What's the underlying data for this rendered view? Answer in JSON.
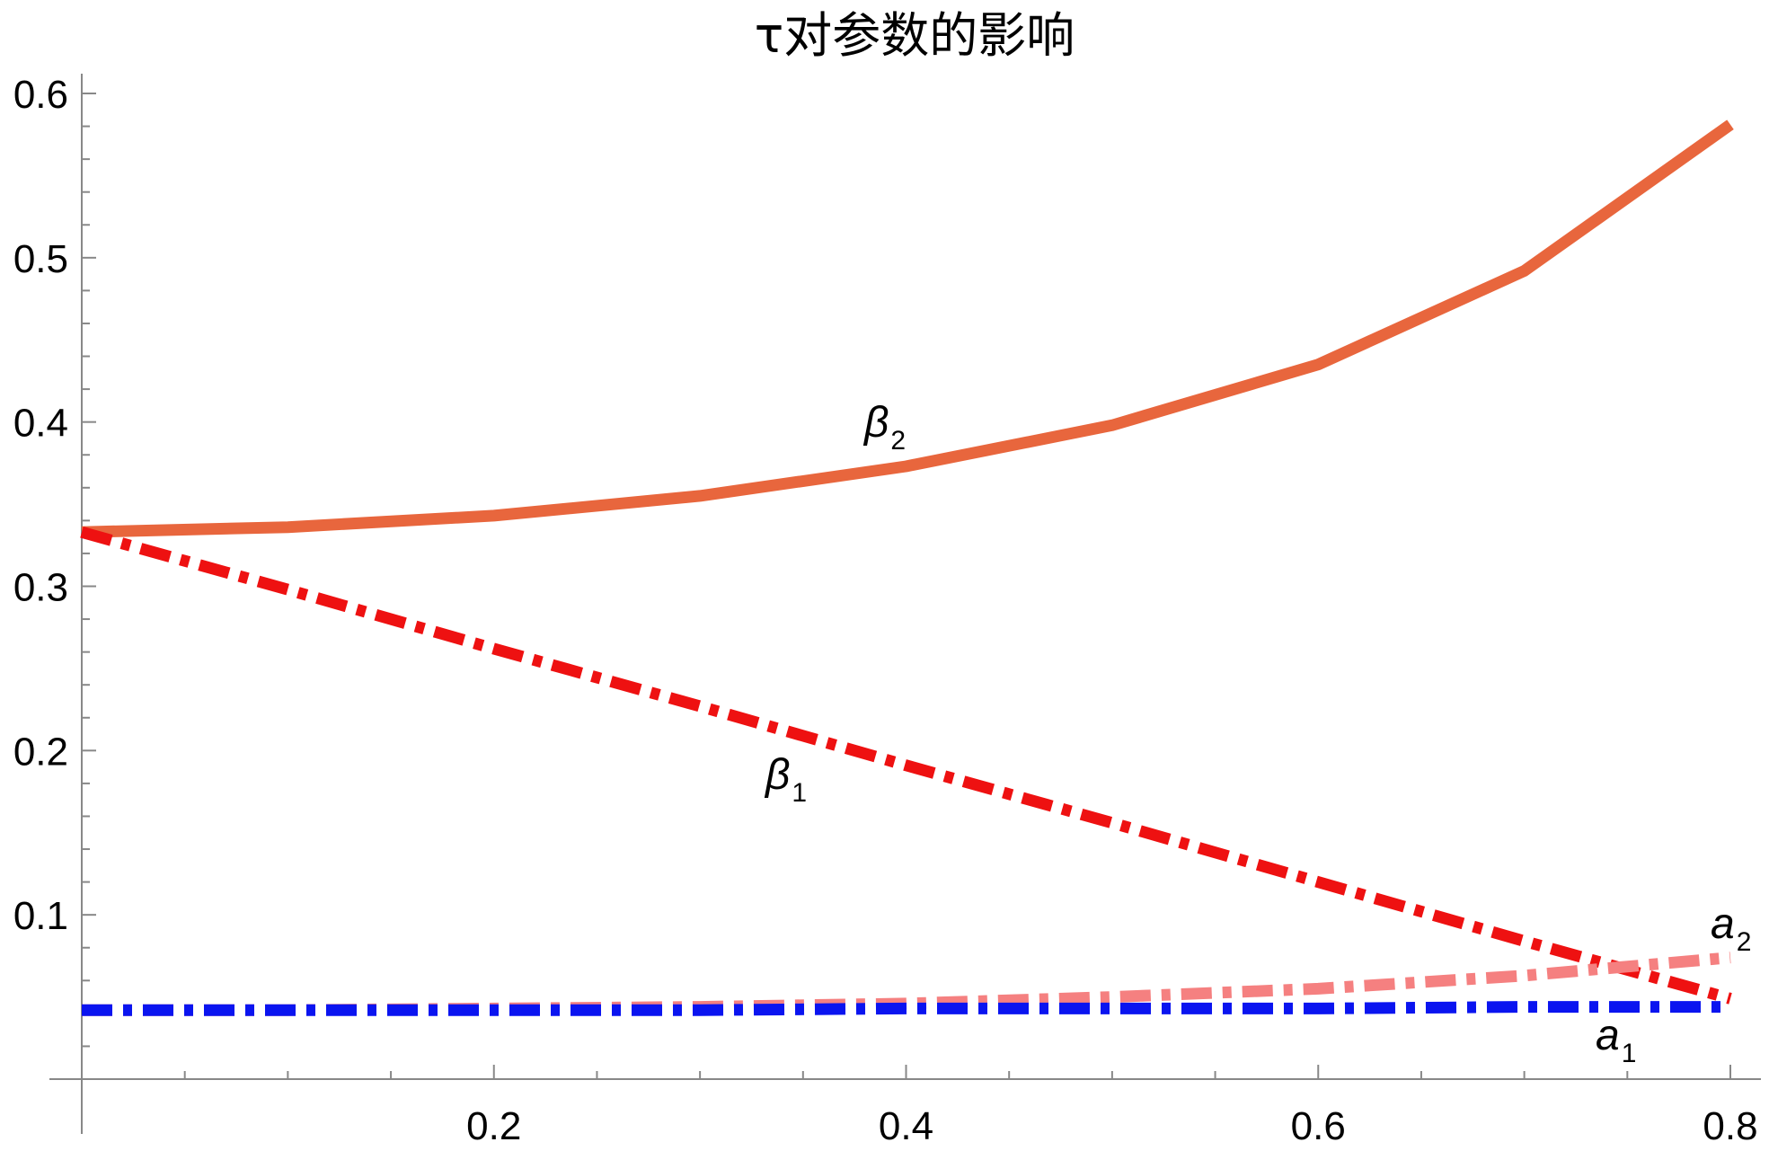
{
  "chart_data": {
    "type": "line",
    "title": "τ对参数的影响",
    "xlabel": "",
    "ylabel": "",
    "xlim": [
      0.0,
      0.81
    ],
    "ylim": [
      0.0,
      0.62
    ],
    "x_ticks": [
      0.2,
      0.4,
      0.6,
      0.8
    ],
    "x_tick_labels": [
      "0.2",
      "0.4",
      "0.6",
      "0.8"
    ],
    "y_ticks": [
      0.1,
      0.2,
      0.3,
      0.4,
      0.5,
      0.6
    ],
    "y_tick_labels": [
      "0.1",
      "0.2",
      "0.3",
      "0.4",
      "0.5",
      "0.6"
    ],
    "grid": false,
    "legend": "none",
    "x": [
      0.0,
      0.1,
      0.2,
      0.3,
      0.4,
      0.5,
      0.6,
      0.7,
      0.8
    ],
    "series": [
      {
        "name": "β2",
        "label_main": "β",
        "label_sub": "2",
        "style": "solid",
        "color": "#E8663D",
        "values": [
          0.333,
          0.336,
          0.343,
          0.355,
          0.373,
          0.398,
          0.435,
          0.492,
          0.581
        ]
      },
      {
        "name": "β1",
        "label_main": "β",
        "label_sub": "1",
        "style": "dashdot",
        "color": "#EE1111",
        "values": [
          0.333,
          0.298,
          0.262,
          0.227,
          0.191,
          0.156,
          0.12,
          0.084,
          0.049
        ]
      },
      {
        "name": "a2",
        "label_main": "a",
        "label_sub": "2",
        "style": "dashdot",
        "color": "#F58080",
        "values": [
          0.042,
          0.042,
          0.043,
          0.044,
          0.046,
          0.05,
          0.055,
          0.063,
          0.074
        ]
      },
      {
        "name": "a1",
        "label_main": "a",
        "label_sub": "1",
        "style": "dashdot",
        "color": "#0A14F0",
        "values": [
          0.042,
          0.042,
          0.042,
          0.042,
          0.043,
          0.043,
          0.043,
          0.044,
          0.044
        ]
      }
    ]
  }
}
